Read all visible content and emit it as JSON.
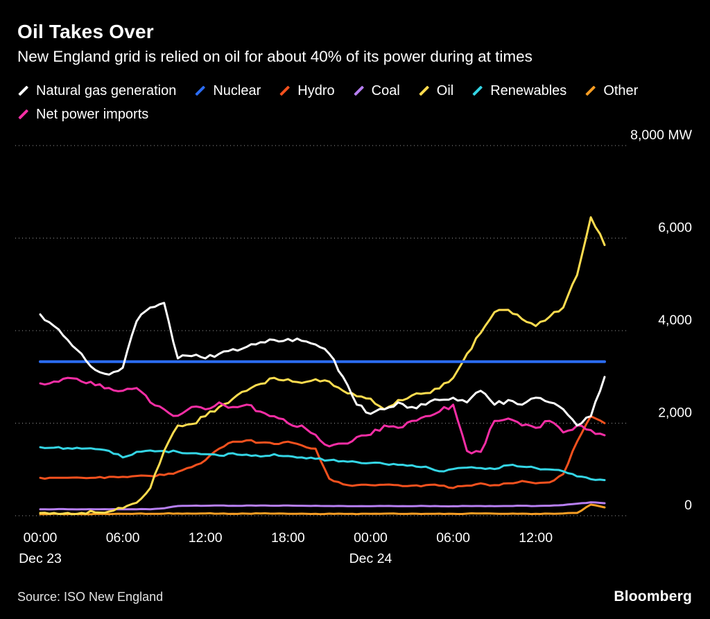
{
  "header": {
    "title": "Oil Takes Over",
    "subtitle": "New England grid is relied on oil for about 40% of its power during at times"
  },
  "footer": {
    "source": "Source: ISO New England",
    "brand": "Bloomberg"
  },
  "chart_data": {
    "type": "line",
    "title": "Oil Takes Over",
    "subtitle": "New England grid is relied on oil for about 40% of its power during at times",
    "ylabel": "MW",
    "ylim": [
      0,
      8000
    ],
    "grid": "dotted-horizontal",
    "legend_position": "top-left",
    "y_ticks": [
      0,
      2000,
      4000,
      6000,
      8000
    ],
    "y_tick_labels": [
      "0",
      "2,000",
      "4,000",
      "6,000",
      "8,000 MW"
    ],
    "hours_span": 41,
    "x_hours": [
      0,
      1,
      2,
      3,
      4,
      5,
      6,
      7,
      8,
      9,
      10,
      11,
      12,
      13,
      14,
      15,
      16,
      17,
      18,
      19,
      20,
      21,
      22,
      23,
      24,
      25,
      26,
      27,
      28,
      29,
      30,
      31,
      32,
      33,
      34,
      35,
      36,
      37,
      38,
      39,
      40,
      41
    ],
    "x_ticks": [
      {
        "hour": 0,
        "label": "00:00"
      },
      {
        "hour": 6,
        "label": "06:00"
      },
      {
        "hour": 12,
        "label": "12:00"
      },
      {
        "hour": 18,
        "label": "18:00"
      },
      {
        "hour": 24,
        "label": "00:00"
      },
      {
        "hour": 30,
        "label": "06:00"
      },
      {
        "hour": 36,
        "label": "12:00"
      }
    ],
    "x_date_labels": [
      {
        "hour": 0,
        "label": "Dec 23"
      },
      {
        "hour": 24,
        "label": "Dec 24"
      }
    ],
    "series": [
      {
        "name": "Natural gas generation",
        "color": "#ffffff",
        "width": 3,
        "jitter": 50,
        "values": [
          4350,
          4100,
          3800,
          3500,
          3150,
          3050,
          3200,
          4200,
          4500,
          4600,
          3400,
          3450,
          3400,
          3500,
          3600,
          3650,
          3750,
          3800,
          3820,
          3780,
          3700,
          3500,
          3000,
          2400,
          2200,
          2300,
          2450,
          2350,
          2400,
          2500,
          2550,
          2450,
          2700,
          2400,
          2500,
          2400,
          2550,
          2450,
          2300,
          1950,
          2150,
          3000
        ]
      },
      {
        "name": "Nuclear",
        "color": "#2b6cf4",
        "width": 4,
        "jitter": 0,
        "values": [
          3330,
          3330,
          3330,
          3330,
          3330,
          3330,
          3330,
          3330,
          3330,
          3330,
          3330,
          3330,
          3330,
          3330,
          3330,
          3330,
          3330,
          3330,
          3330,
          3330,
          3330,
          3330,
          3330,
          3330,
          3330,
          3330,
          3330,
          3330,
          3330,
          3330,
          3330,
          3330,
          3330,
          3330,
          3330,
          3330,
          3330,
          3330,
          3330,
          3330,
          3330,
          3330
        ]
      },
      {
        "name": "Hydro",
        "color": "#f4511e",
        "width": 3,
        "jitter": 22,
        "values": [
          820,
          820,
          820,
          820,
          820,
          840,
          840,
          860,
          860,
          880,
          950,
          1050,
          1200,
          1450,
          1600,
          1630,
          1580,
          1550,
          1600,
          1520,
          1450,
          800,
          680,
          660,
          660,
          670,
          660,
          650,
          660,
          650,
          600,
          650,
          700,
          660,
          700,
          750,
          700,
          720,
          900,
          1600,
          2150,
          2000
        ]
      },
      {
        "name": "Coal",
        "color": "#b77ff2",
        "width": 3,
        "jitter": 4,
        "values": [
          140,
          140,
          140,
          140,
          140,
          140,
          140,
          140,
          140,
          160,
          210,
          215,
          215,
          220,
          215,
          220,
          220,
          215,
          220,
          215,
          215,
          210,
          210,
          205,
          205,
          210,
          205,
          205,
          210,
          205,
          205,
          210,
          210,
          205,
          210,
          215,
          210,
          215,
          230,
          260,
          290,
          270
        ]
      },
      {
        "name": "Oil",
        "color": "#ffdc4f",
        "width": 3,
        "jitter": 40,
        "values": [
          60,
          60,
          60,
          60,
          70,
          90,
          160,
          280,
          600,
          1400,
          1950,
          1980,
          2150,
          2350,
          2530,
          2700,
          2850,
          2980,
          2950,
          2870,
          2950,
          2900,
          2700,
          2580,
          2530,
          2300,
          2500,
          2600,
          2650,
          2750,
          2980,
          3500,
          3950,
          4400,
          4450,
          4250,
          4100,
          4300,
          4500,
          5200,
          6450,
          5850
        ]
      },
      {
        "name": "Renewables",
        "color": "#34d5e5",
        "width": 3,
        "jitter": 22,
        "values": [
          1480,
          1470,
          1460,
          1450,
          1440,
          1400,
          1260,
          1380,
          1410,
          1400,
          1380,
          1350,
          1330,
          1300,
          1350,
          1320,
          1280,
          1330,
          1290,
          1260,
          1230,
          1200,
          1180,
          1160,
          1140,
          1120,
          1100,
          1090,
          1060,
          960,
          1010,
          1040,
          1030,
          1010,
          1090,
          1060,
          1030,
          1000,
          960,
          850,
          790,
          770
        ]
      },
      {
        "name": "Other",
        "color": "#f79d23",
        "width": 3,
        "jitter": 7,
        "values": [
          35,
          40,
          35,
          35,
          40,
          35,
          40,
          45,
          40,
          45,
          50,
          45,
          50,
          45,
          40,
          45,
          50,
          45,
          40,
          45,
          40,
          45,
          40,
          35,
          40,
          45,
          40,
          45,
          40,
          45,
          40,
          45,
          50,
          45,
          40,
          45,
          40,
          45,
          50,
          60,
          240,
          180
        ]
      },
      {
        "name": "Net power imports",
        "color": "#f62ea5",
        "width": 3,
        "jitter": 50,
        "values": [
          2860,
          2900,
          2980,
          2900,
          2820,
          2760,
          2700,
          2760,
          2450,
          2300,
          2160,
          2350,
          2300,
          2450,
          2350,
          2400,
          2250,
          2150,
          2000,
          1950,
          1750,
          1500,
          1560,
          1700,
          1750,
          1950,
          1900,
          2050,
          2150,
          2250,
          2400,
          1400,
          1380,
          2050,
          2100,
          1950,
          1900,
          2050,
          1800,
          1950,
          1850,
          1740
        ]
      }
    ]
  }
}
